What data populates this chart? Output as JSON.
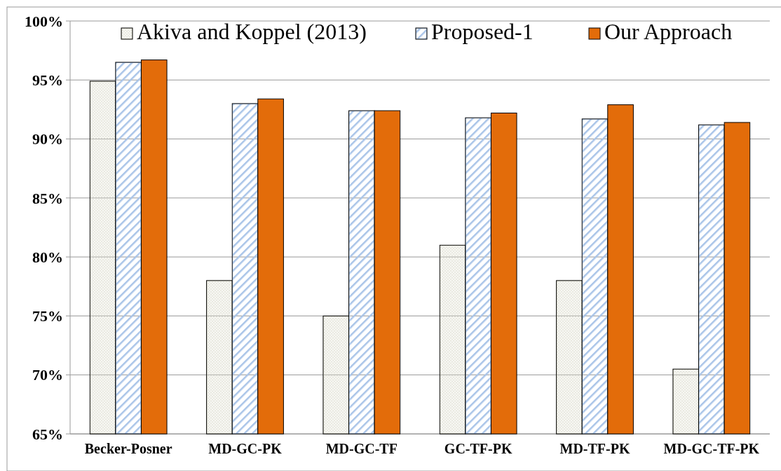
{
  "chart_data": {
    "type": "bar",
    "categories": [
      "Becker-Posner",
      "MD-GC-PK",
      "MD-GC-TF",
      "GC-TF-PK",
      "MD-TF-PK",
      "MD-GC-TF-PK"
    ],
    "series": [
      {
        "name": "Akiva and Koppel (2013)",
        "color": "#d9d9c8",
        "values": [
          94.9,
          78,
          75,
          81,
          78,
          70.5
        ]
      },
      {
        "name": "Proposed-1",
        "color": "#a9c4e8",
        "values": [
          96.5,
          93.0,
          92.4,
          91.8,
          91.7,
          91.2
        ]
      },
      {
        "name": "Our Approach",
        "color": "#e36c0a",
        "values": [
          96.7,
          93.4,
          92.4,
          92.2,
          92.9,
          91.4
        ]
      }
    ],
    "ylim": [
      65,
      100
    ],
    "yticks": [
      {
        "value": 65,
        "label": "65%"
      },
      {
        "value": 70,
        "label": "70%"
      },
      {
        "value": 75,
        "label": "75%"
      },
      {
        "value": 80,
        "label": "80%"
      },
      {
        "value": 85,
        "label": "85%"
      },
      {
        "value": 90,
        "label": "90%"
      },
      {
        "value": 95,
        "label": "95%"
      },
      {
        "value": 100,
        "label": "100%"
      }
    ],
    "grid": "y",
    "legend": "top"
  }
}
